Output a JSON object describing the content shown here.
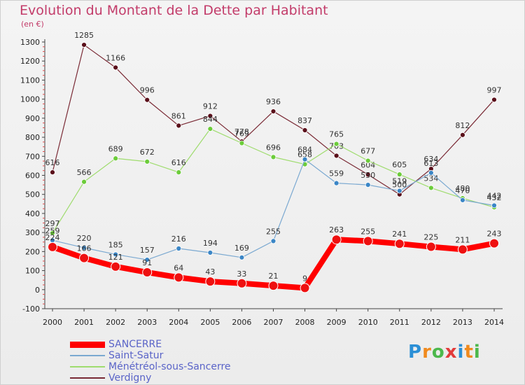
{
  "header": {
    "title": "Evolution du Montant de la Dette par Habitant",
    "unit": "(en €)"
  },
  "brand": {
    "letters": [
      "P",
      "r",
      "o",
      "x",
      "i",
      "t",
      "i"
    ],
    "colors": [
      "#2b8fd6",
      "#f08a1e",
      "#4cb84c",
      "#e23b3b",
      "#2b8fd6",
      "#f08a1e",
      "#4cb84c"
    ]
  },
  "chart_data": {
    "type": "line",
    "title": "Evolution du Montant de la Dette par Habitant",
    "ylabel": "(en €)",
    "xlabel": "",
    "categories": [
      "2000",
      "2001",
      "2002",
      "2003",
      "2004",
      "2005",
      "2006",
      "2007",
      "2008",
      "2009",
      "2010",
      "2011",
      "2012",
      "2013",
      "2014"
    ],
    "ylim": [
      -100,
      1300
    ],
    "yticks": [
      -100,
      0,
      100,
      200,
      300,
      400,
      500,
      600,
      700,
      800,
      900,
      1000,
      1100,
      1200,
      1300
    ],
    "grid": false,
    "legend": "bottom-left",
    "series": [
      {
        "name": "Verdigny",
        "color": "#7a2a35",
        "point_color": "#5a0f1a",
        "width": 1.2,
        "marker_r": 3.5,
        "values": [
          616,
          1285,
          1166,
          996,
          861,
          912,
          778,
          936,
          837,
          703,
          604,
          500,
          634,
          812,
          997
        ],
        "labels": [
          "616",
          "1285",
          "1166",
          "996",
          "861",
          "912",
          "778",
          "936",
          "837",
          "703",
          "604",
          "500",
          "634",
          "812",
          "997"
        ]
      },
      {
        "name": "Ménétréol-sous-Sancerre",
        "color": "#9fdc6e",
        "point_color": "#6ccc3a",
        "width": 1.2,
        "marker_r": 3.5,
        "values": [
          297,
          566,
          689,
          672,
          616,
          844,
          769,
          696,
          658,
          765,
          677,
          605,
          534,
          480,
          432
        ],
        "labels": [
          "297",
          "566",
          "689",
          "672",
          "616",
          "844",
          "769",
          "696",
          "658",
          "765",
          "677",
          "605",
          "534",
          "480",
          "432"
        ]
      },
      {
        "name": "Saint-Satur",
        "color": "#7ba9d1",
        "point_color": "#3b86c6",
        "width": 1.2,
        "marker_r": 3.5,
        "values": [
          259,
          220,
          185,
          157,
          216,
          194,
          169,
          255,
          684,
          559,
          550,
          519,
          613,
          470,
          442
        ],
        "labels": [
          "259",
          "220",
          "185",
          "157",
          "216",
          "194",
          "169",
          "255",
          "684",
          "559",
          "550",
          "519",
          "613",
          "470",
          "442"
        ]
      },
      {
        "name": "SANCERRE",
        "color": "#ff0000",
        "point_color": "#ee1111",
        "width": 8,
        "marker_r": 6.5,
        "values": [
          224,
          166,
          121,
          91,
          64,
          43,
          33,
          21,
          9,
          263,
          255,
          241,
          225,
          211,
          243
        ],
        "labels": [
          "224",
          "166",
          "121",
          "91",
          "64",
          "43",
          "33",
          "21",
          "9",
          "263",
          "255",
          "241",
          "225",
          "211",
          "243"
        ]
      }
    ]
  },
  "legend": {
    "items": [
      {
        "label": "SANCERRE",
        "color": "#ff0000",
        "thick": true
      },
      {
        "label": "Saint-Satur",
        "color": "#7ba9d1",
        "thick": false
      },
      {
        "label": "Ménétréol-sous-Sancerre",
        "color": "#9fdc6e",
        "thick": false
      },
      {
        "label": "Verdigny",
        "color": "#7a2a35",
        "thick": false
      }
    ]
  }
}
